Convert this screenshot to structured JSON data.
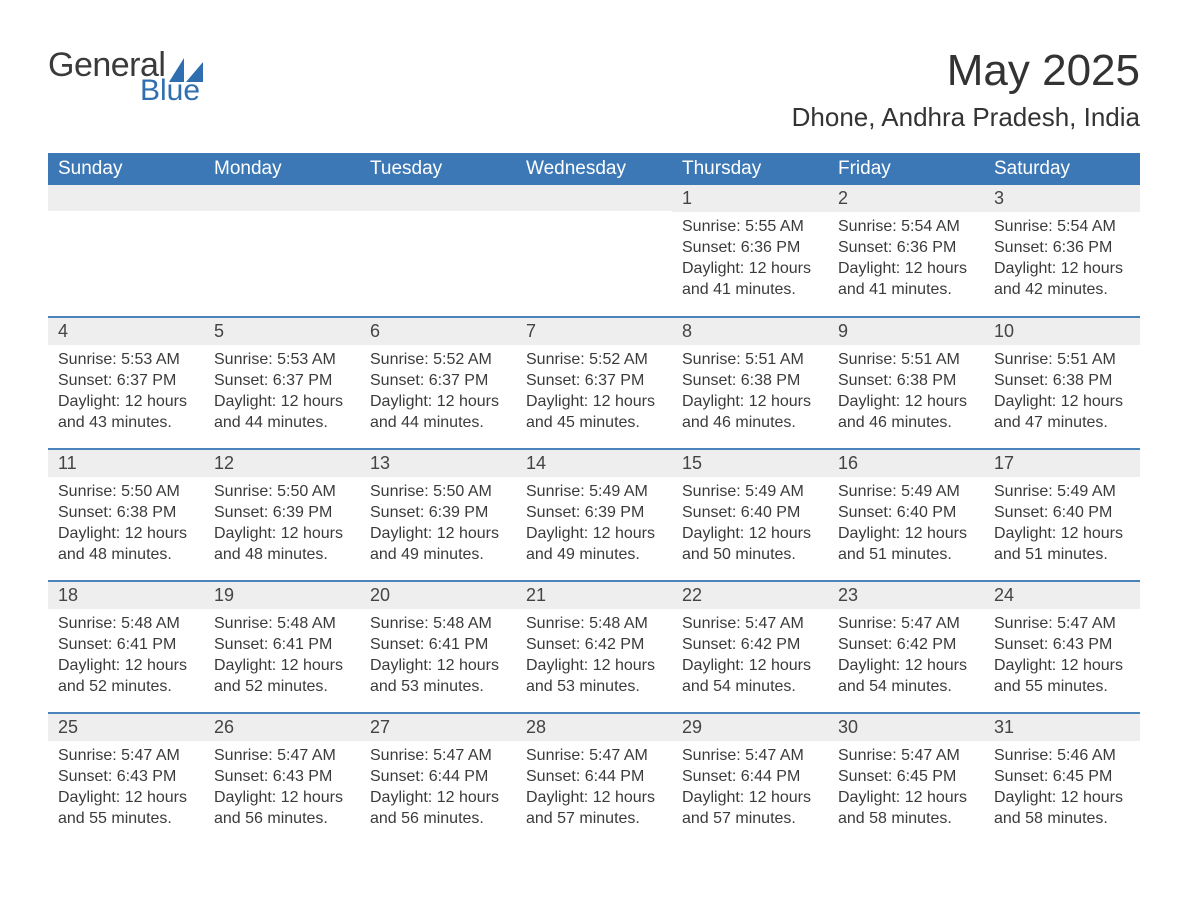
{
  "brand": {
    "text1": "General",
    "text2": "Blue",
    "sail_color": "#2f6fb0"
  },
  "title": "May 2025",
  "location": "Dhone, Andhra Pradesh, India",
  "colors": {
    "header_bg": "#3d78b6",
    "header_text": "#ffffff",
    "week_divider": "#4a82bc",
    "daynum_bg": "#eeeeee",
    "page_bg": "#ffffff",
    "body_text": "#3b3b3b"
  },
  "typography": {
    "title_fontsize": 44,
    "location_fontsize": 26,
    "th_fontsize": 19,
    "daynum_fontsize": 18,
    "body_fontsize": 16,
    "font_family": "Arial"
  },
  "layout": {
    "columns": 7,
    "rows": 5,
    "week_start": "Sunday"
  },
  "daysOfWeek": [
    "Sunday",
    "Monday",
    "Tuesday",
    "Wednesday",
    "Thursday",
    "Friday",
    "Saturday"
  ],
  "weeks": [
    [
      null,
      null,
      null,
      null,
      {
        "n": "1",
        "sunrise": "5:55 AM",
        "sunset": "6:36 PM",
        "daylight": "12 hours and 41 minutes."
      },
      {
        "n": "2",
        "sunrise": "5:54 AM",
        "sunset": "6:36 PM",
        "daylight": "12 hours and 41 minutes."
      },
      {
        "n": "3",
        "sunrise": "5:54 AM",
        "sunset": "6:36 PM",
        "daylight": "12 hours and 42 minutes."
      }
    ],
    [
      {
        "n": "4",
        "sunrise": "5:53 AM",
        "sunset": "6:37 PM",
        "daylight": "12 hours and 43 minutes."
      },
      {
        "n": "5",
        "sunrise": "5:53 AM",
        "sunset": "6:37 PM",
        "daylight": "12 hours and 44 minutes."
      },
      {
        "n": "6",
        "sunrise": "5:52 AM",
        "sunset": "6:37 PM",
        "daylight": "12 hours and 44 minutes."
      },
      {
        "n": "7",
        "sunrise": "5:52 AM",
        "sunset": "6:37 PM",
        "daylight": "12 hours and 45 minutes."
      },
      {
        "n": "8",
        "sunrise": "5:51 AM",
        "sunset": "6:38 PM",
        "daylight": "12 hours and 46 minutes."
      },
      {
        "n": "9",
        "sunrise": "5:51 AM",
        "sunset": "6:38 PM",
        "daylight": "12 hours and 46 minutes."
      },
      {
        "n": "10",
        "sunrise": "5:51 AM",
        "sunset": "6:38 PM",
        "daylight": "12 hours and 47 minutes."
      }
    ],
    [
      {
        "n": "11",
        "sunrise": "5:50 AM",
        "sunset": "6:38 PM",
        "daylight": "12 hours and 48 minutes."
      },
      {
        "n": "12",
        "sunrise": "5:50 AM",
        "sunset": "6:39 PM",
        "daylight": "12 hours and 48 minutes."
      },
      {
        "n": "13",
        "sunrise": "5:50 AM",
        "sunset": "6:39 PM",
        "daylight": "12 hours and 49 minutes."
      },
      {
        "n": "14",
        "sunrise": "5:49 AM",
        "sunset": "6:39 PM",
        "daylight": "12 hours and 49 minutes."
      },
      {
        "n": "15",
        "sunrise": "5:49 AM",
        "sunset": "6:40 PM",
        "daylight": "12 hours and 50 minutes."
      },
      {
        "n": "16",
        "sunrise": "5:49 AM",
        "sunset": "6:40 PM",
        "daylight": "12 hours and 51 minutes."
      },
      {
        "n": "17",
        "sunrise": "5:49 AM",
        "sunset": "6:40 PM",
        "daylight": "12 hours and 51 minutes."
      }
    ],
    [
      {
        "n": "18",
        "sunrise": "5:48 AM",
        "sunset": "6:41 PM",
        "daylight": "12 hours and 52 minutes."
      },
      {
        "n": "19",
        "sunrise": "5:48 AM",
        "sunset": "6:41 PM",
        "daylight": "12 hours and 52 minutes."
      },
      {
        "n": "20",
        "sunrise": "5:48 AM",
        "sunset": "6:41 PM",
        "daylight": "12 hours and 53 minutes."
      },
      {
        "n": "21",
        "sunrise": "5:48 AM",
        "sunset": "6:42 PM",
        "daylight": "12 hours and 53 minutes."
      },
      {
        "n": "22",
        "sunrise": "5:47 AM",
        "sunset": "6:42 PM",
        "daylight": "12 hours and 54 minutes."
      },
      {
        "n": "23",
        "sunrise": "5:47 AM",
        "sunset": "6:42 PM",
        "daylight": "12 hours and 54 minutes."
      },
      {
        "n": "24",
        "sunrise": "5:47 AM",
        "sunset": "6:43 PM",
        "daylight": "12 hours and 55 minutes."
      }
    ],
    [
      {
        "n": "25",
        "sunrise": "5:47 AM",
        "sunset": "6:43 PM",
        "daylight": "12 hours and 55 minutes."
      },
      {
        "n": "26",
        "sunrise": "5:47 AM",
        "sunset": "6:43 PM",
        "daylight": "12 hours and 56 minutes."
      },
      {
        "n": "27",
        "sunrise": "5:47 AM",
        "sunset": "6:44 PM",
        "daylight": "12 hours and 56 minutes."
      },
      {
        "n": "28",
        "sunrise": "5:47 AM",
        "sunset": "6:44 PM",
        "daylight": "12 hours and 57 minutes."
      },
      {
        "n": "29",
        "sunrise": "5:47 AM",
        "sunset": "6:44 PM",
        "daylight": "12 hours and 57 minutes."
      },
      {
        "n": "30",
        "sunrise": "5:47 AM",
        "sunset": "6:45 PM",
        "daylight": "12 hours and 58 minutes."
      },
      {
        "n": "31",
        "sunrise": "5:46 AM",
        "sunset": "6:45 PM",
        "daylight": "12 hours and 58 minutes."
      }
    ]
  ],
  "labels": {
    "sunrise": "Sunrise:",
    "sunset": "Sunset:",
    "daylight": "Daylight:"
  }
}
